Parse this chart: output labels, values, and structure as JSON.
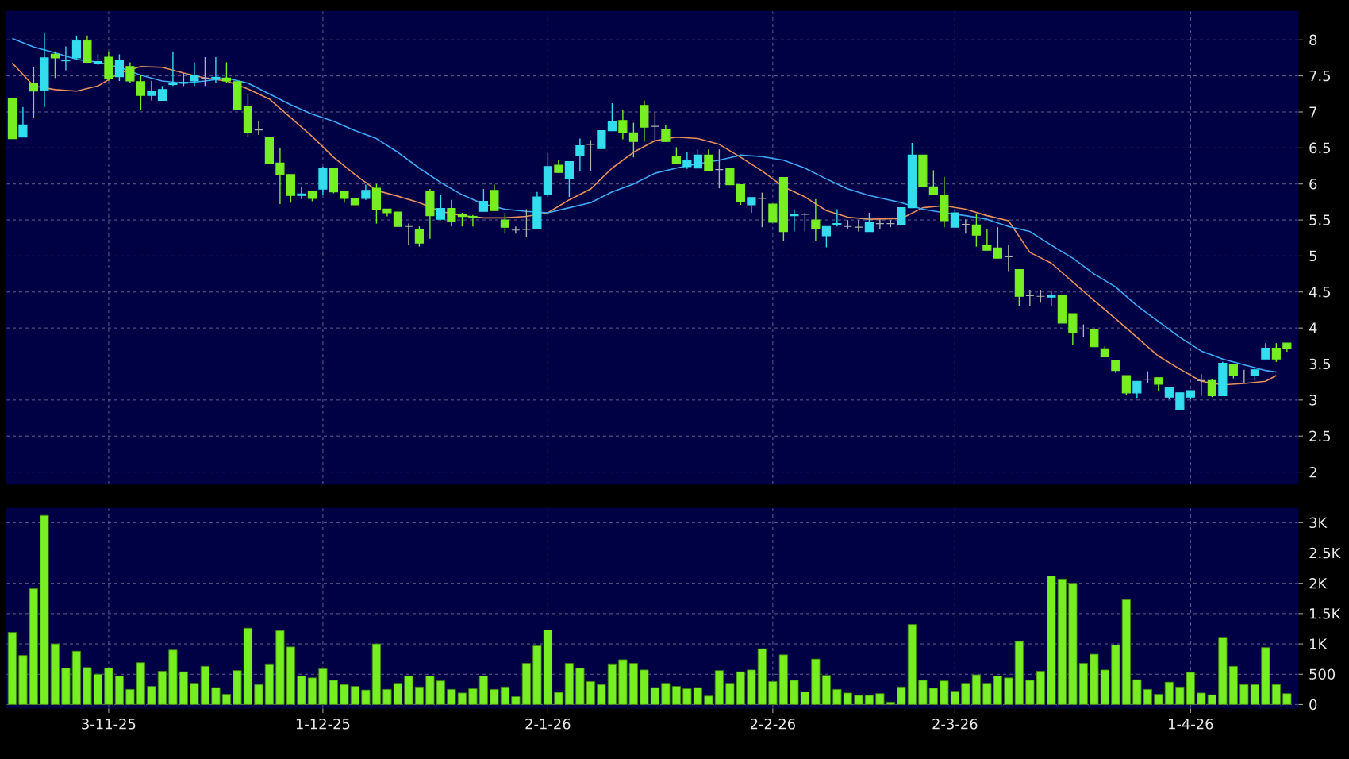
{
  "chart_data": [
    {
      "type": "candlestick",
      "grid": true,
      "tick_labels": "y",
      "ylim": [
        1.83,
        8.4
      ],
      "yticks": [
        2,
        2.5,
        3,
        3.5,
        4,
        4.5,
        5,
        5.5,
        6,
        6.5,
        7,
        7.5,
        8
      ],
      "categories": [
        null,
        null,
        null,
        null,
        null,
        null,
        null,
        null,
        null,
        null,
        null,
        null,
        null,
        null,
        null,
        null,
        null,
        null,
        null,
        null,
        null,
        null,
        null,
        null,
        null,
        null,
        null,
        null,
        null,
        null,
        null,
        null,
        null,
        null,
        null,
        null,
        null,
        null,
        null,
        null,
        null,
        null,
        null,
        null,
        null,
        null,
        null,
        null,
        null,
        null,
        null,
        null,
        null,
        null,
        null,
        null,
        null,
        null,
        null,
        null,
        null,
        null,
        null,
        null,
        null,
        null,
        null,
        null,
        null,
        null,
        null,
        null,
        null,
        null,
        null,
        null,
        null,
        null,
        null,
        null,
        null,
        null,
        null,
        null,
        null,
        null,
        null,
        null,
        null,
        null,
        null,
        null,
        null,
        null,
        null,
        null,
        null,
        null,
        null,
        null,
        null,
        null,
        null,
        null,
        null,
        null,
        null,
        null,
        null,
        null,
        null,
        null,
        null,
        null,
        null,
        null,
        null,
        null,
        null,
        null
      ],
      "series": [
        {
          "type": "candlestick",
          "ohlc": [
            [
              7.18,
              7.18,
              6.63,
              6.63
            ],
            [
              6.65,
              7.07,
              6.65,
              6.82
            ],
            [
              7.4,
              7.62,
              6.92,
              7.29
            ],
            [
              7.3,
              8.1,
              7.07,
              7.75
            ],
            [
              7.8,
              7.84,
              7.47,
              7.75
            ],
            [
              7.71,
              7.91,
              7.58,
              7.72
            ],
            [
              7.75,
              8.06,
              7.73,
              7.99
            ],
            [
              7.99,
              8.06,
              7.69,
              7.69
            ],
            [
              7.67,
              7.8,
              7.65,
              7.7
            ],
            [
              7.76,
              7.84,
              7.43,
              7.47
            ],
            [
              7.49,
              7.8,
              7.43,
              7.71
            ],
            [
              7.63,
              7.69,
              7.4,
              7.43
            ],
            [
              7.42,
              7.51,
              7.03,
              7.23
            ],
            [
              7.23,
              7.43,
              7.16,
              7.28
            ],
            [
              7.16,
              7.36,
              7.16,
              7.31
            ],
            [
              7.38,
              7.84,
              7.36,
              7.39
            ],
            [
              7.4,
              7.54,
              7.36,
              7.41
            ],
            [
              7.43,
              7.69,
              7.36,
              7.51
            ],
            [
              7.47,
              7.76,
              7.36,
              7.47
            ],
            [
              7.47,
              7.76,
              7.4,
              7.48
            ],
            [
              7.47,
              7.69,
              7.4,
              7.43
            ],
            [
              7.42,
              7.42,
              7.04,
              7.04
            ],
            [
              7.07,
              7.25,
              6.65,
              6.71
            ],
            [
              6.75,
              6.88,
              6.68,
              6.75
            ],
            [
              6.65,
              6.65,
              6.29,
              6.29
            ],
            [
              6.29,
              6.5,
              5.72,
              6.13
            ],
            [
              6.13,
              6.13,
              5.74,
              5.84
            ],
            [
              5.84,
              5.96,
              5.79,
              5.86
            ],
            [
              5.89,
              5.89,
              5.76,
              5.8
            ],
            [
              5.93,
              6.24,
              5.85,
              6.22
            ],
            [
              6.21,
              6.21,
              5.87,
              5.89
            ],
            [
              5.89,
              5.89,
              5.74,
              5.8
            ],
            [
              5.8,
              5.8,
              5.71,
              5.71
            ],
            [
              5.8,
              5.99,
              5.78,
              5.91
            ],
            [
              5.94,
              6.0,
              5.45,
              5.65
            ],
            [
              5.65,
              5.65,
              5.55,
              5.6
            ],
            [
              5.61,
              5.61,
              5.41,
              5.41
            ],
            [
              5.41,
              5.45,
              5.15,
              5.41
            ],
            [
              5.37,
              5.41,
              5.13,
              5.18
            ],
            [
              5.89,
              5.93,
              5.24,
              5.56
            ],
            [
              5.51,
              5.85,
              5.51,
              5.66
            ],
            [
              5.66,
              5.78,
              5.41,
              5.48
            ],
            [
              5.58,
              5.6,
              5.41,
              5.55
            ],
            [
              5.55,
              5.57,
              5.41,
              5.54
            ],
            [
              5.62,
              5.93,
              5.62,
              5.76
            ],
            [
              5.91,
              5.99,
              5.63,
              5.63
            ],
            [
              5.5,
              5.6,
              5.31,
              5.4
            ],
            [
              5.36,
              5.41,
              5.31,
              5.36
            ],
            [
              5.37,
              5.65,
              5.26,
              5.37
            ],
            [
              5.38,
              5.89,
              5.38,
              5.82
            ],
            [
              5.85,
              6.43,
              5.82,
              6.24
            ],
            [
              6.26,
              6.33,
              6.16,
              6.16
            ],
            [
              6.07,
              6.31,
              5.82,
              6.31
            ],
            [
              6.4,
              6.63,
              6.18,
              6.53
            ],
            [
              6.55,
              6.61,
              6.18,
              6.55
            ],
            [
              6.49,
              6.74,
              6.49,
              6.74
            ],
            [
              6.74,
              7.12,
              6.74,
              6.86
            ],
            [
              6.88,
              7.03,
              6.62,
              6.72
            ],
            [
              6.71,
              6.85,
              6.37,
              6.59
            ],
            [
              7.09,
              7.16,
              6.59,
              6.79
            ],
            [
              6.8,
              7.0,
              6.59,
              6.8
            ],
            [
              6.75,
              6.82,
              6.59,
              6.59
            ],
            [
              6.38,
              6.51,
              6.28,
              6.28
            ],
            [
              6.24,
              6.44,
              6.21,
              6.33
            ],
            [
              6.22,
              6.48,
              6.22,
              6.4
            ],
            [
              6.4,
              6.48,
              6.18,
              6.18
            ],
            [
              6.2,
              6.48,
              5.94,
              6.2
            ],
            [
              6.22,
              6.22,
              5.99,
              5.99
            ],
            [
              5.99,
              5.99,
              5.71,
              5.76
            ],
            [
              5.71,
              5.81,
              5.6,
              5.81
            ],
            [
              5.8,
              5.88,
              5.4,
              5.8
            ],
            [
              5.72,
              5.72,
              5.47,
              5.47
            ],
            [
              6.09,
              6.09,
              5.21,
              5.34
            ],
            [
              5.56,
              5.65,
              5.34,
              5.58
            ],
            [
              5.58,
              5.6,
              5.34,
              5.58
            ],
            [
              5.5,
              5.79,
              5.21,
              5.38
            ],
            [
              5.28,
              5.41,
              5.12,
              5.41
            ],
            [
              5.44,
              5.65,
              5.41,
              5.45
            ],
            [
              5.41,
              5.5,
              5.38,
              5.41
            ],
            [
              5.4,
              5.5,
              5.34,
              5.4
            ],
            [
              5.34,
              5.6,
              5.34,
              5.47
            ],
            [
              5.45,
              5.51,
              5.37,
              5.45
            ],
            [
              5.45,
              5.5,
              5.4,
              5.45
            ],
            [
              5.43,
              5.67,
              5.43,
              5.67
            ],
            [
              5.67,
              6.57,
              5.67,
              6.4
            ],
            [
              6.4,
              6.4,
              5.96,
              5.96
            ],
            [
              5.96,
              6.19,
              5.85,
              5.85
            ],
            [
              5.84,
              6.1,
              5.4,
              5.49
            ],
            [
              5.4,
              5.65,
              5.4,
              5.6
            ],
            [
              5.44,
              5.51,
              5.31,
              5.44
            ],
            [
              5.43,
              5.58,
              5.13,
              5.29
            ],
            [
              5.15,
              5.38,
              5.08,
              5.08
            ],
            [
              5.11,
              5.4,
              4.97,
              4.97
            ],
            [
              4.99,
              5.16,
              4.79,
              4.99
            ],
            [
              4.81,
              4.81,
              4.31,
              4.44
            ],
            [
              4.45,
              4.53,
              4.31,
              4.45
            ],
            [
              4.44,
              4.53,
              4.35,
              4.44
            ],
            [
              4.43,
              4.51,
              4.31,
              4.45
            ],
            [
              4.45,
              4.45,
              4.07,
              4.07
            ],
            [
              4.2,
              4.2,
              3.76,
              3.93
            ],
            [
              3.93,
              4.05,
              3.87,
              3.93
            ],
            [
              3.98,
              3.98,
              3.74,
              3.74
            ],
            [
              3.71,
              3.75,
              3.6,
              3.6
            ],
            [
              3.55,
              3.55,
              3.38,
              3.41
            ],
            [
              3.34,
              3.34,
              3.07,
              3.1
            ],
            [
              3.1,
              3.26,
              3.03,
              3.26
            ],
            [
              3.29,
              3.4,
              3.24,
              3.29
            ],
            [
              3.31,
              3.31,
              3.12,
              3.22
            ],
            [
              3.04,
              3.17,
              3.02,
              3.17
            ],
            [
              2.87,
              3.1,
              2.87,
              3.1
            ],
            [
              3.04,
              3.13,
              3.02,
              3.13
            ],
            [
              3.27,
              3.36,
              3.06,
              3.27
            ],
            [
              3.27,
              3.29,
              3.04,
              3.06
            ],
            [
              3.06,
              3.53,
              3.06,
              3.51
            ],
            [
              3.5,
              3.5,
              3.3,
              3.34
            ],
            [
              3.39,
              3.42,
              3.24,
              3.39
            ],
            [
              3.34,
              3.46,
              3.27,
              3.42
            ],
            [
              3.57,
              3.79,
              3.57,
              3.72
            ],
            [
              3.72,
              3.79,
              3.53,
              3.57
            ],
            [
              3.79,
              3.79,
              3.67,
              3.72
            ]
          ],
          "colors": [
            "#77ee22",
            "#33ddee",
            "#77ee22",
            "#33ddee",
            "#77ee22",
            "#33ddee",
            "#33ddee",
            "#77ee22",
            "#33ddee",
            "#77ee22",
            "#33ddee",
            "#77ee22",
            "#77ee22",
            "#33ddee",
            "#33ddee",
            "#33ddee",
            "#33ddee",
            "#33ddee",
            "#b0b0b0",
            "#33ddee",
            "#77ee22",
            "#77ee22",
            "#77ee22",
            "#b0b0b0",
            "#77ee22",
            "#77ee22",
            "#77ee22",
            "#33ddee",
            "#77ee22",
            "#33ddee",
            "#77ee22",
            "#77ee22",
            "#77ee22",
            "#33ddee",
            "#77ee22",
            "#77ee22",
            "#77ee22",
            "#b0b0b0",
            "#77ee22",
            "#77ee22",
            "#33ddee",
            "#77ee22",
            "#77ee22",
            "#77ee22",
            "#33ddee",
            "#77ee22",
            "#77ee22",
            "#b0b0b0",
            "#b0b0b0",
            "#33ddee",
            "#33ddee",
            "#77ee22",
            "#33ddee",
            "#33ddee",
            "#b0b0b0",
            "#33ddee",
            "#33ddee",
            "#77ee22",
            "#77ee22",
            "#77ee22",
            "#b0b0b0",
            "#77ee22",
            "#77ee22",
            "#33ddee",
            "#33ddee",
            "#77ee22",
            "#b0b0b0",
            "#77ee22",
            "#77ee22",
            "#33ddee",
            "#b0b0b0",
            "#77ee22",
            "#77ee22",
            "#33ddee",
            "#b0b0b0",
            "#77ee22",
            "#33ddee",
            "#33ddee",
            "#b0b0b0",
            "#b0b0b0",
            "#33ddee",
            "#b0b0b0",
            "#b0b0b0",
            "#33ddee",
            "#33ddee",
            "#77ee22",
            "#77ee22",
            "#77ee22",
            "#33ddee",
            "#b0b0b0",
            "#77ee22",
            "#77ee22",
            "#77ee22",
            "#b0b0b0",
            "#77ee22",
            "#b0b0b0",
            "#b0b0b0",
            "#33ddee",
            "#77ee22",
            "#77ee22",
            "#b0b0b0",
            "#77ee22",
            "#77ee22",
            "#77ee22",
            "#77ee22",
            "#33ddee",
            "#b0b0b0",
            "#77ee22",
            "#33ddee",
            "#33ddee",
            "#33ddee",
            "#b0b0b0",
            "#77ee22",
            "#33ddee",
            "#77ee22",
            "#b0b0b0",
            "#33ddee",
            "#33ddee",
            "#77ee22",
            "#77ee22"
          ]
        },
        {
          "type": "line",
          "color": "#e8905c",
          "values": [
            7.68,
            null,
            7.36,
            null,
            7.31,
            null,
            7.29,
            null,
            7.36,
            null,
            7.54,
            null,
            7.63,
            null,
            7.62,
            null,
            7.54,
            null,
            7.47,
            null,
            7.43,
            null,
            7.32,
            null,
            7.18,
            null,
            6.92,
            null,
            6.66,
            null,
            6.37,
            null,
            6.13,
            null,
            5.91,
            null,
            5.83,
            null,
            5.74,
            null,
            5.62,
            null,
            5.56,
            null,
            5.53,
            null,
            5.53,
            null,
            5.55,
            null,
            5.6,
            null,
            5.78,
            null,
            5.93,
            null,
            6.22,
            null,
            6.44,
            null,
            6.6,
            null,
            6.65,
            null,
            6.63,
            null,
            6.55,
            null,
            6.37,
            null,
            6.18,
            null,
            5.96,
            null,
            5.82,
            null,
            5.63,
            null,
            5.54,
            null,
            5.51,
            null,
            null,
            5.52,
            null,
            5.67,
            null,
            5.7,
            null,
            5.65,
            null,
            5.56,
            null,
            5.49,
            null,
            5.05,
            null,
            4.9,
            null,
            4.64,
            null,
            4.38,
            null,
            4.13,
            null,
            3.87,
            null,
            3.61,
            null,
            3.43,
            null,
            3.26,
            null,
            3.21,
            null,
            3.23,
            null,
            3.26,
            3.34,
            null
          ]
        },
        {
          "type": "line",
          "color": "#3fa9f5",
          "values": [
            8.02,
            null,
            7.9,
            null,
            7.82,
            null,
            7.73,
            null,
            7.69,
            null,
            7.62,
            null,
            7.51,
            null,
            7.43,
            null,
            7.4,
            null,
            7.43,
            null,
            7.47,
            null,
            7.4,
            null,
            7.25,
            null,
            7.1,
            null,
            6.97,
            null,
            6.87,
            null,
            6.74,
            null,
            6.63,
            null,
            6.44,
            null,
            6.22,
            null,
            6.02,
            null,
            5.85,
            null,
            5.72,
            null,
            5.65,
            null,
            5.62,
            null,
            5.6,
            null,
            5.67,
            null,
            5.74,
            null,
            5.89,
            null,
            6.0,
            null,
            6.15,
            null,
            6.22,
            null,
            6.28,
            null,
            6.33,
            null,
            6.4,
            null,
            6.38,
            null,
            6.33,
            null,
            6.22,
            null,
            6.07,
            null,
            5.93,
            null,
            5.84,
            null,
            null,
            5.74,
            null,
            5.65,
            null,
            5.6,
            null,
            5.56,
            null,
            5.51,
            null,
            5.41,
            null,
            5.34,
            null,
            5.15,
            null,
            4.97,
            null,
            4.75,
            null,
            4.57,
            null,
            4.31,
            null,
            4.09,
            null,
            3.87,
            null,
            3.68,
            null,
            3.57,
            null,
            3.49,
            null,
            3.41,
            3.39,
            null
          ]
        }
      ]
    },
    {
      "type": "bar",
      "grid": true,
      "color": "#77ee22",
      "ylim": [
        -60,
        3240
      ],
      "yticks": [
        0,
        500,
        {
          "value": 1000,
          "label": "1K"
        },
        {
          "value": 1500,
          "label": "1.5K"
        },
        {
          "value": 2000,
          "label": "2K"
        },
        {
          "value": 2500,
          "label": "2.5K"
        },
        {
          "value": 3000,
          "label": "3K"
        }
      ],
      "categories": [
        null,
        null,
        null,
        null,
        null,
        null,
        null,
        null,
        null,
        "3-11-25",
        null,
        null,
        null,
        null,
        null,
        null,
        null,
        null,
        null,
        null,
        null,
        null,
        null,
        null,
        null,
        null,
        null,
        null,
        null,
        "1-12-25",
        null,
        null,
        null,
        null,
        null,
        null,
        null,
        null,
        null,
        null,
        null,
        null,
        null,
        null,
        null,
        null,
        null,
        null,
        null,
        null,
        "2-1-26",
        null,
        null,
        null,
        null,
        null,
        null,
        null,
        null,
        null,
        null,
        null,
        null,
        null,
        null,
        null,
        null,
        null,
        null,
        null,
        null,
        "2-2-26",
        null,
        null,
        null,
        null,
        null,
        null,
        null,
        null,
        null,
        null,
        null,
        null,
        null,
        null,
        null,
        null,
        "2-3-26",
        null,
        null,
        null,
        null,
        null,
        null,
        null,
        null,
        null,
        null,
        null,
        null,
        null,
        null,
        null,
        null,
        null,
        null,
        null,
        null,
        null,
        "1-4-26",
        null,
        null,
        null,
        null,
        null,
        null,
        null,
        null,
        null
      ],
      "values": [
        1190,
        810,
        1910,
        3120,
        1000,
        600,
        880,
        610,
        500,
        600,
        470,
        250,
        690,
        300,
        550,
        900,
        540,
        350,
        630,
        280,
        170,
        560,
        1260,
        330,
        670,
        1220,
        950,
        470,
        440,
        590,
        400,
        330,
        300,
        240,
        1000,
        250,
        350,
        470,
        290,
        470,
        390,
        250,
        190,
        260,
        470,
        250,
        290,
        130,
        680,
        970,
        1230,
        200,
        680,
        600,
        380,
        330,
        670,
        740,
        680,
        570,
        280,
        350,
        300,
        260,
        280,
        140,
        560,
        350,
        540,
        570,
        920,
        380,
        820,
        400,
        210,
        750,
        480,
        250,
        190,
        150,
        150,
        180,
        40,
        290,
        1320,
        400,
        270,
        390,
        220,
        350,
        490,
        350,
        470,
        440,
        1040,
        400,
        550,
        2120,
        2070,
        2000,
        680,
        830,
        570,
        980,
        1730,
        410,
        250,
        170,
        370,
        290,
        530,
        190,
        160,
        1110,
        630,
        330,
        330,
        940,
        330,
        180
      ]
    }
  ]
}
